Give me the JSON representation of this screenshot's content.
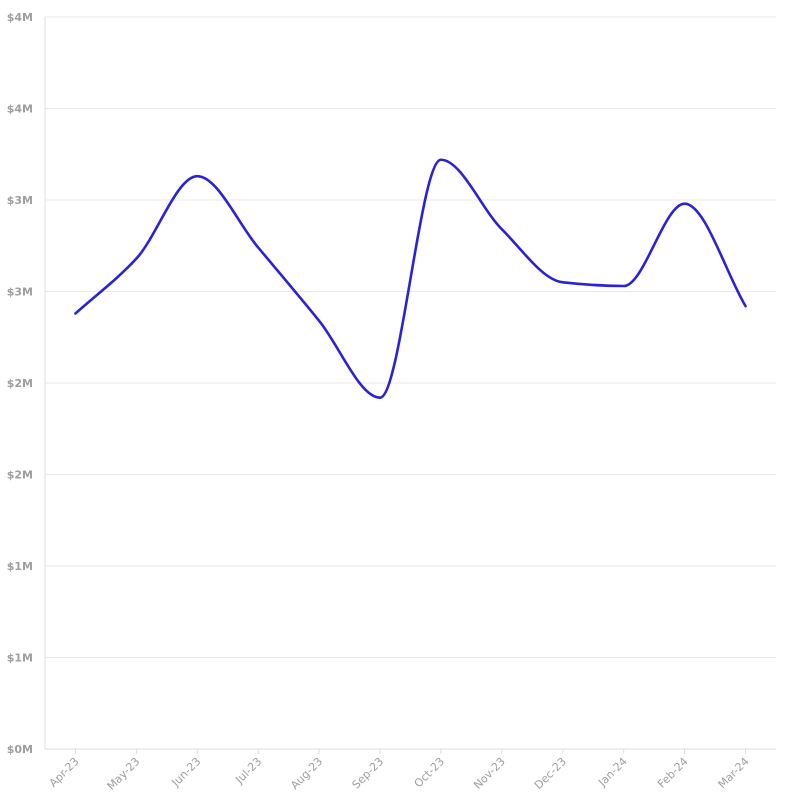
{
  "chart_data": {
    "type": "line",
    "title": "",
    "xlabel": "",
    "ylabel": "",
    "categories": [
      "Apr-23",
      "May-23",
      "Jun-23",
      "Jul-23",
      "Aug-23",
      "Sep-23",
      "Oct-23",
      "Nov-23",
      "Dec-23",
      "Jan-24",
      "Feb-24",
      "Mar-24"
    ],
    "series": [
      {
        "values": [
          2.38,
          2.68,
          3.13,
          2.74,
          2.34,
          1.92,
          3.22,
          2.84,
          2.55,
          2.53,
          2.98,
          2.42
        ]
      }
    ],
    "ylim": [
      0,
      4
    ],
    "ytick_values": [
      0,
      0.5,
      1,
      1.5,
      2,
      2.5,
      3,
      3.5,
      4
    ],
    "ytick_labels": [
      "$0M",
      "$1M",
      "$1M",
      "$2M",
      "$2M",
      "$3M",
      "$3M",
      "$4M",
      "$4M"
    ],
    "grid": true,
    "legend": "none",
    "line_color": "#2b21d6"
  }
}
